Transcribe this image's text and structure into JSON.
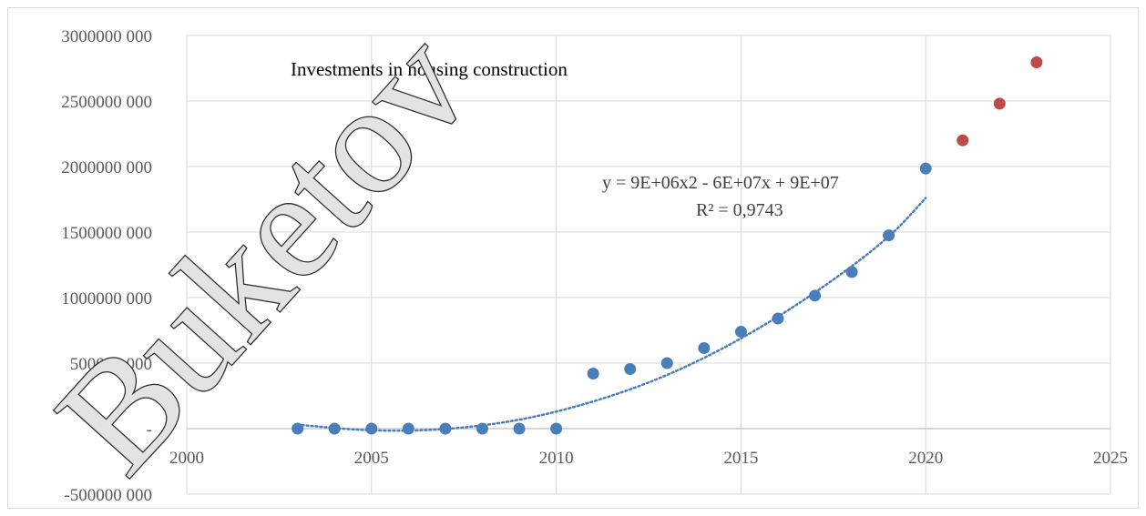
{
  "chart_data": {
    "type": "scatter",
    "title": "Investments in housing construction",
    "xlim": [
      2000,
      2025
    ],
    "ylim": [
      -500000000,
      3000000000
    ],
    "x_ticks": [
      2000,
      2005,
      2010,
      2015,
      2020,
      2025
    ],
    "x_tick_labels": [
      "2000",
      "2005",
      "2010",
      "2015",
      "2020",
      "2025"
    ],
    "y_ticks": [
      -500000000,
      0,
      500000000,
      1000000000,
      1500000000,
      2000000000,
      2500000000,
      3000000000
    ],
    "y_tick_labels": [
      "-500000 000",
      "-",
      "500000 000",
      "1000000 000",
      "1500000 000",
      "2000000 000",
      "2500000 000",
      "3000000 000"
    ],
    "grid": true,
    "series": [
      {
        "color": "#4a7ebb",
        "x": [
          2003,
          2004,
          2005,
          2006,
          2007,
          2008,
          2009,
          2010,
          2011,
          2012,
          2013,
          2014,
          2015,
          2016,
          2017,
          2018,
          2019,
          2020
        ],
        "y": [
          0,
          0,
          0,
          0,
          0,
          0,
          0,
          0,
          420000000,
          455000000,
          500000000,
          615000000,
          740000000,
          840000000,
          1015000000,
          1195000000,
          1475000000,
          1985000000
        ]
      },
      {
        "color": "#be4b48",
        "x": [
          2021,
          2022,
          2023
        ],
        "y": [
          2200000000,
          2480000000,
          2795000000
        ]
      }
    ],
    "trendline": {
      "color": "#4a7ebb",
      "style": "dotted",
      "points_x": [
        2003,
        2005,
        2007,
        2009,
        2011,
        2013,
        2015,
        2017,
        2019,
        2020
      ],
      "points_y": [
        30000000,
        -20000000,
        -10000000,
        60000000,
        200000000,
        400000000,
        680000000,
        1030000000,
        1450000000,
        1760000000
      ],
      "equation": "y = 9E+06x2 - 6E+07x + 9E+07",
      "r_squared": "R² = 0,9743"
    },
    "watermark": "Buketov"
  }
}
